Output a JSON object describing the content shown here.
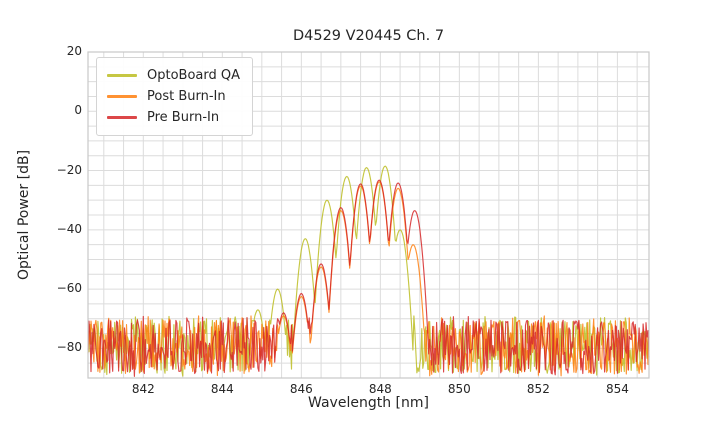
{
  "chart_data": {
    "type": "line",
    "title": "D4529 V20445 Ch. 7",
    "xlabel": "Wavelength [nm]",
    "ylabel": "Optical Power [dB]",
    "xlim": [
      840.6,
      854.8
    ],
    "ylim": [
      -90,
      20
    ],
    "xticks": [
      {
        "v": 842,
        "label": "842"
      },
      {
        "v": 844,
        "label": "844"
      },
      {
        "v": 846,
        "label": "846"
      },
      {
        "v": 848,
        "label": "848"
      },
      {
        "v": 850,
        "label": "850"
      },
      {
        "v": 852,
        "label": "852"
      },
      {
        "v": 854,
        "label": "854"
      }
    ],
    "yticks": [
      {
        "v": 20,
        "label": "20"
      },
      {
        "v": 0,
        "label": "0"
      },
      {
        "v": -20,
        "label": "−20"
      },
      {
        "v": -40,
        "label": "−40"
      },
      {
        "v": -60,
        "label": "−60"
      },
      {
        "v": -80,
        "label": "−80"
      }
    ],
    "grid": {
      "x_step": 0.5,
      "y_step": 5,
      "color": "#dcdcdc",
      "spine_color": "#c8c8c8"
    },
    "legend": {
      "position": "upper-left"
    },
    "noise_floor": {
      "top_db": -70.5,
      "bottom_db": -88.5
    },
    "lobe_half_width_nm": 0.25,
    "dip_depth_db": 24,
    "series": [
      {
        "name": "OptoBoard QA",
        "color": "#bcbd22",
        "seed": 11,
        "peak_db": -18.5,
        "peak_nm": 848.12,
        "lobes": [
          [
            844.9,
            -67
          ],
          [
            845.4,
            -60
          ],
          [
            846.1,
            -43
          ],
          [
            846.65,
            -30
          ],
          [
            847.15,
            -22
          ],
          [
            847.65,
            -19
          ],
          [
            848.12,
            -18.5
          ],
          [
            848.5,
            -40
          ]
        ]
      },
      {
        "name": "Post Burn-In",
        "color": "#ff7f0e",
        "seed": 22,
        "peak_db": -23.8,
        "peak_nm": 847.97,
        "lobes": [
          [
            845.55,
            -69
          ],
          [
            846.0,
            -62.5
          ],
          [
            846.5,
            -52.5
          ],
          [
            847.0,
            -33.5
          ],
          [
            847.5,
            -25.2
          ],
          [
            847.97,
            -23.8
          ],
          [
            848.45,
            -26
          ],
          [
            848.83,
            -45
          ]
        ]
      },
      {
        "name": "Pre Burn-In",
        "color": "#d62728",
        "seed": 33,
        "peak_db": -23.2,
        "peak_nm": 847.97,
        "lobes": [
          [
            845.55,
            -68
          ],
          [
            846.0,
            -61.5
          ],
          [
            846.5,
            -51.5
          ],
          [
            847.0,
            -32.5
          ],
          [
            847.5,
            -24.5
          ],
          [
            847.97,
            -23.2
          ],
          [
            848.45,
            -24.2
          ],
          [
            848.87,
            -33.5
          ]
        ]
      }
    ]
  }
}
